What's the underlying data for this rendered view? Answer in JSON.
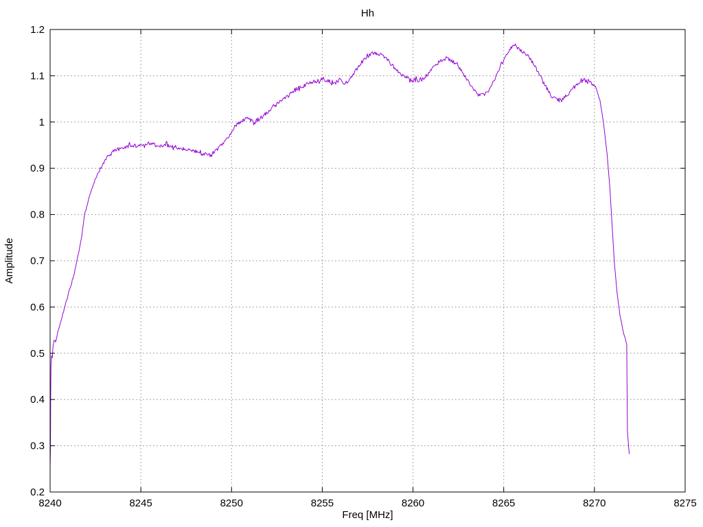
{
  "window": {
    "background": "#ffffff"
  },
  "chart_data": {
    "type": "line",
    "title": "Hh",
    "xlabel": "Freq [MHz]",
    "ylabel": "Amplitude",
    "xlim": [
      8240,
      8275
    ],
    "ylim": [
      0.2,
      1.2
    ],
    "grid": true,
    "grid_style": "dotted",
    "grid_color": "#9a9a9a",
    "axis_color": "#000000",
    "tick_label_color": "#000000",
    "legend_position": "none",
    "xticks": [
      {
        "value": 8240,
        "label": "8240"
      },
      {
        "value": 8245,
        "label": "8245"
      },
      {
        "value": 8250,
        "label": "8250"
      },
      {
        "value": 8255,
        "label": "8255"
      },
      {
        "value": 8260,
        "label": "8260"
      },
      {
        "value": 8265,
        "label": "8265"
      },
      {
        "value": 8270,
        "label": "8270"
      },
      {
        "value": 8275,
        "label": "8275"
      }
    ],
    "yticks": [
      {
        "value": 0.2,
        "label": "0.2"
      },
      {
        "value": 0.3,
        "label": "0.3"
      },
      {
        "value": 0.4,
        "label": "0.4"
      },
      {
        "value": 0.5,
        "label": "0.5"
      },
      {
        "value": 0.6,
        "label": "0.6"
      },
      {
        "value": 0.7,
        "label": "0.7"
      },
      {
        "value": 0.8,
        "label": "0.8"
      },
      {
        "value": 0.9,
        "label": "0.9"
      },
      {
        "value": 1.0,
        "label": "1"
      },
      {
        "value": 1.1,
        "label": "1.1"
      },
      {
        "value": 1.2,
        "label": "1.2"
      }
    ],
    "series": [
      {
        "name": "Hh",
        "color": "#9400d3",
        "line_width": 1,
        "noise_amplitude": 0.0045,
        "points": [
          [
            8240.0,
            0.255
          ],
          [
            8240.02,
            0.295
          ],
          [
            8240.03,
            0.4
          ],
          [
            8240.05,
            0.475
          ],
          [
            8240.08,
            0.495
          ],
          [
            8240.12,
            0.49
          ],
          [
            8240.16,
            0.515
          ],
          [
            8240.22,
            0.53
          ],
          [
            8240.3,
            0.525
          ],
          [
            8240.42,
            0.545
          ],
          [
            8240.55,
            0.562
          ],
          [
            8240.7,
            0.585
          ],
          [
            8240.85,
            0.607
          ],
          [
            8241.0,
            0.628
          ],
          [
            8241.15,
            0.648
          ],
          [
            8241.3,
            0.668
          ],
          [
            8241.45,
            0.695
          ],
          [
            8241.6,
            0.722
          ],
          [
            8241.75,
            0.755
          ],
          [
            8241.9,
            0.8
          ],
          [
            8242.05,
            0.822
          ],
          [
            8242.2,
            0.843
          ],
          [
            8242.4,
            0.868
          ],
          [
            8242.6,
            0.886
          ],
          [
            8242.8,
            0.902
          ],
          [
            8243.0,
            0.916
          ],
          [
            8243.2,
            0.926
          ],
          [
            8243.4,
            0.933
          ],
          [
            8243.7,
            0.94
          ],
          [
            8244.0,
            0.945
          ],
          [
            8244.3,
            0.948
          ],
          [
            8244.6,
            0.95
          ],
          [
            8244.9,
            0.947
          ],
          [
            8245.2,
            0.951
          ],
          [
            8245.5,
            0.954
          ],
          [
            8245.8,
            0.95
          ],
          [
            8246.1,
            0.948
          ],
          [
            8246.4,
            0.951
          ],
          [
            8246.7,
            0.947
          ],
          [
            8247.0,
            0.945
          ],
          [
            8247.3,
            0.943
          ],
          [
            8247.6,
            0.94
          ],
          [
            8247.9,
            0.937
          ],
          [
            8248.2,
            0.933
          ],
          [
            8248.5,
            0.93
          ],
          [
            8248.7,
            0.928
          ],
          [
            8248.9,
            0.931
          ],
          [
            8249.1,
            0.936
          ],
          [
            8249.4,
            0.948
          ],
          [
            8249.7,
            0.962
          ],
          [
            8250.0,
            0.978
          ],
          [
            8250.3,
            0.995
          ],
          [
            8250.6,
            1.003
          ],
          [
            8250.9,
            1.007
          ],
          [
            8251.1,
            1.003
          ],
          [
            8251.3,
            0.998
          ],
          [
            8251.5,
            1.005
          ],
          [
            8251.8,
            1.015
          ],
          [
            8252.1,
            1.025
          ],
          [
            8252.4,
            1.038
          ],
          [
            8252.7,
            1.045
          ],
          [
            8253.0,
            1.052
          ],
          [
            8253.3,
            1.063
          ],
          [
            8253.6,
            1.072
          ],
          [
            8253.9,
            1.078
          ],
          [
            8254.2,
            1.083
          ],
          [
            8254.5,
            1.086
          ],
          [
            8254.8,
            1.09
          ],
          [
            8255.1,
            1.093
          ],
          [
            8255.4,
            1.088
          ],
          [
            8255.7,
            1.085
          ],
          [
            8256.0,
            1.09
          ],
          [
            8256.2,
            1.082
          ],
          [
            8256.4,
            1.085
          ],
          [
            8256.7,
            1.103
          ],
          [
            8257.0,
            1.12
          ],
          [
            8257.3,
            1.135
          ],
          [
            8257.6,
            1.145
          ],
          [
            8257.9,
            1.15
          ],
          [
            8258.2,
            1.147
          ],
          [
            8258.5,
            1.138
          ],
          [
            8258.8,
            1.125
          ],
          [
            8259.1,
            1.112
          ],
          [
            8259.4,
            1.1
          ],
          [
            8259.7,
            1.094
          ],
          [
            8260.0,
            1.091
          ],
          [
            8260.3,
            1.09
          ],
          [
            8260.6,
            1.095
          ],
          [
            8260.9,
            1.108
          ],
          [
            8261.2,
            1.122
          ],
          [
            8261.5,
            1.132
          ],
          [
            8261.8,
            1.137
          ],
          [
            8262.1,
            1.133
          ],
          [
            8262.4,
            1.125
          ],
          [
            8262.7,
            1.108
          ],
          [
            8263.0,
            1.09
          ],
          [
            8263.3,
            1.072
          ],
          [
            8263.6,
            1.06
          ],
          [
            8263.9,
            1.058
          ],
          [
            8264.2,
            1.07
          ],
          [
            8264.5,
            1.092
          ],
          [
            8264.8,
            1.118
          ],
          [
            8265.1,
            1.14
          ],
          [
            8265.4,
            1.16
          ],
          [
            8265.6,
            1.168
          ],
          [
            8265.8,
            1.158
          ],
          [
            8266.1,
            1.15
          ],
          [
            8266.4,
            1.14
          ],
          [
            8266.7,
            1.122
          ],
          [
            8267.0,
            1.1
          ],
          [
            8267.3,
            1.078
          ],
          [
            8267.6,
            1.058
          ],
          [
            8267.9,
            1.048
          ],
          [
            8268.2,
            1.047
          ],
          [
            8268.5,
            1.058
          ],
          [
            8268.8,
            1.072
          ],
          [
            8269.1,
            1.082
          ],
          [
            8269.4,
            1.09
          ],
          [
            8269.7,
            1.088
          ],
          [
            8269.9,
            1.082
          ],
          [
            8270.1,
            1.072
          ],
          [
            8270.3,
            1.048
          ],
          [
            8270.5,
            0.998
          ],
          [
            8270.7,
            0.93
          ],
          [
            8270.85,
            0.858
          ],
          [
            8271.0,
            0.76
          ],
          [
            8271.1,
            0.695
          ],
          [
            8271.25,
            0.63
          ],
          [
            8271.4,
            0.585
          ],
          [
            8271.55,
            0.553
          ],
          [
            8271.7,
            0.53
          ],
          [
            8271.78,
            0.52
          ],
          [
            8271.8,
            0.42
          ],
          [
            8271.82,
            0.33
          ],
          [
            8271.88,
            0.3
          ],
          [
            8271.92,
            0.282
          ]
        ]
      }
    ]
  }
}
